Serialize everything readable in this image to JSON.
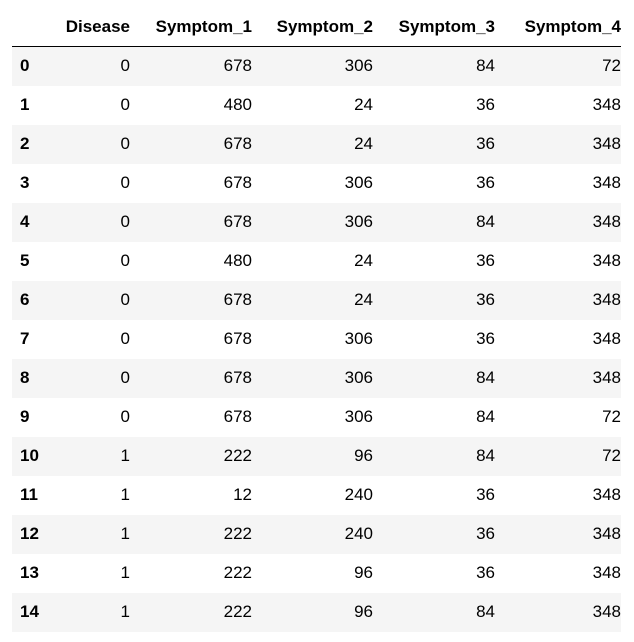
{
  "table": {
    "index_header": "",
    "columns": [
      "Disease",
      "Symptom_1",
      "Symptom_2",
      "Symptom_3",
      "Symptom_4"
    ],
    "rows": [
      {
        "index": "0",
        "cells": [
          "0",
          "678",
          "306",
          "84",
          "72"
        ]
      },
      {
        "index": "1",
        "cells": [
          "0",
          "480",
          "24",
          "36",
          "348"
        ]
      },
      {
        "index": "2",
        "cells": [
          "0",
          "678",
          "24",
          "36",
          "348"
        ]
      },
      {
        "index": "3",
        "cells": [
          "0",
          "678",
          "306",
          "36",
          "348"
        ]
      },
      {
        "index": "4",
        "cells": [
          "0",
          "678",
          "306",
          "84",
          "348"
        ]
      },
      {
        "index": "5",
        "cells": [
          "0",
          "480",
          "24",
          "36",
          "348"
        ]
      },
      {
        "index": "6",
        "cells": [
          "0",
          "678",
          "24",
          "36",
          "348"
        ]
      },
      {
        "index": "7",
        "cells": [
          "0",
          "678",
          "306",
          "36",
          "348"
        ]
      },
      {
        "index": "8",
        "cells": [
          "0",
          "678",
          "306",
          "84",
          "348"
        ]
      },
      {
        "index": "9",
        "cells": [
          "0",
          "678",
          "306",
          "84",
          "72"
        ]
      },
      {
        "index": "10",
        "cells": [
          "1",
          "222",
          "96",
          "84",
          "72"
        ]
      },
      {
        "index": "11",
        "cells": [
          "1",
          "12",
          "240",
          "36",
          "348"
        ]
      },
      {
        "index": "12",
        "cells": [
          "1",
          "222",
          "240",
          "36",
          "348"
        ]
      },
      {
        "index": "13",
        "cells": [
          "1",
          "222",
          "96",
          "36",
          "348"
        ]
      },
      {
        "index": "14",
        "cells": [
          "1",
          "222",
          "96",
          "84",
          "348"
        ]
      }
    ]
  }
}
